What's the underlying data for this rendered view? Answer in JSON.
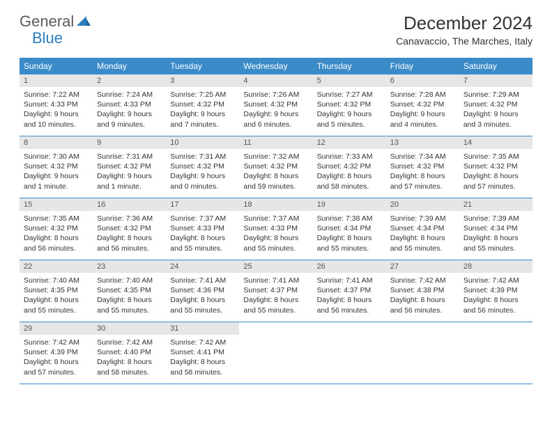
{
  "logo": {
    "text_general": "General",
    "text_blue": "Blue",
    "icon_fill": "#2a7dbf"
  },
  "header": {
    "month_title": "December 2024",
    "location": "Canavaccio, The Marches, Italy"
  },
  "colors": {
    "header_bg": "#3b8bc9",
    "header_text": "#ffffff",
    "daynum_bg": "#e6e6e6",
    "daynum_text": "#555555",
    "body_text": "#333333",
    "border": "#3b8bc9"
  },
  "day_labels": [
    "Sunday",
    "Monday",
    "Tuesday",
    "Wednesday",
    "Thursday",
    "Friday",
    "Saturday"
  ],
  "weeks": [
    [
      {
        "n": "1",
        "sr": "Sunrise: 7:22 AM",
        "ss": "Sunset: 4:33 PM",
        "dl": "Daylight: 9 hours and 10 minutes."
      },
      {
        "n": "2",
        "sr": "Sunrise: 7:24 AM",
        "ss": "Sunset: 4:33 PM",
        "dl": "Daylight: 9 hours and 9 minutes."
      },
      {
        "n": "3",
        "sr": "Sunrise: 7:25 AM",
        "ss": "Sunset: 4:32 PM",
        "dl": "Daylight: 9 hours and 7 minutes."
      },
      {
        "n": "4",
        "sr": "Sunrise: 7:26 AM",
        "ss": "Sunset: 4:32 PM",
        "dl": "Daylight: 9 hours and 6 minutes."
      },
      {
        "n": "5",
        "sr": "Sunrise: 7:27 AM",
        "ss": "Sunset: 4:32 PM",
        "dl": "Daylight: 9 hours and 5 minutes."
      },
      {
        "n": "6",
        "sr": "Sunrise: 7:28 AM",
        "ss": "Sunset: 4:32 PM",
        "dl": "Daylight: 9 hours and 4 minutes."
      },
      {
        "n": "7",
        "sr": "Sunrise: 7:29 AM",
        "ss": "Sunset: 4:32 PM",
        "dl": "Daylight: 9 hours and 3 minutes."
      }
    ],
    [
      {
        "n": "8",
        "sr": "Sunrise: 7:30 AM",
        "ss": "Sunset: 4:32 PM",
        "dl": "Daylight: 9 hours and 1 minute."
      },
      {
        "n": "9",
        "sr": "Sunrise: 7:31 AM",
        "ss": "Sunset: 4:32 PM",
        "dl": "Daylight: 9 hours and 1 minute."
      },
      {
        "n": "10",
        "sr": "Sunrise: 7:31 AM",
        "ss": "Sunset: 4:32 PM",
        "dl": "Daylight: 9 hours and 0 minutes."
      },
      {
        "n": "11",
        "sr": "Sunrise: 7:32 AM",
        "ss": "Sunset: 4:32 PM",
        "dl": "Daylight: 8 hours and 59 minutes."
      },
      {
        "n": "12",
        "sr": "Sunrise: 7:33 AM",
        "ss": "Sunset: 4:32 PM",
        "dl": "Daylight: 8 hours and 58 minutes."
      },
      {
        "n": "13",
        "sr": "Sunrise: 7:34 AM",
        "ss": "Sunset: 4:32 PM",
        "dl": "Daylight: 8 hours and 57 minutes."
      },
      {
        "n": "14",
        "sr": "Sunrise: 7:35 AM",
        "ss": "Sunset: 4:32 PM",
        "dl": "Daylight: 8 hours and 57 minutes."
      }
    ],
    [
      {
        "n": "15",
        "sr": "Sunrise: 7:35 AM",
        "ss": "Sunset: 4:32 PM",
        "dl": "Daylight: 8 hours and 56 minutes."
      },
      {
        "n": "16",
        "sr": "Sunrise: 7:36 AM",
        "ss": "Sunset: 4:32 PM",
        "dl": "Daylight: 8 hours and 56 minutes."
      },
      {
        "n": "17",
        "sr": "Sunrise: 7:37 AM",
        "ss": "Sunset: 4:33 PM",
        "dl": "Daylight: 8 hours and 55 minutes."
      },
      {
        "n": "18",
        "sr": "Sunrise: 7:37 AM",
        "ss": "Sunset: 4:33 PM",
        "dl": "Daylight: 8 hours and 55 minutes."
      },
      {
        "n": "19",
        "sr": "Sunrise: 7:38 AM",
        "ss": "Sunset: 4:34 PM",
        "dl": "Daylight: 8 hours and 55 minutes."
      },
      {
        "n": "20",
        "sr": "Sunrise: 7:39 AM",
        "ss": "Sunset: 4:34 PM",
        "dl": "Daylight: 8 hours and 55 minutes."
      },
      {
        "n": "21",
        "sr": "Sunrise: 7:39 AM",
        "ss": "Sunset: 4:34 PM",
        "dl": "Daylight: 8 hours and 55 minutes."
      }
    ],
    [
      {
        "n": "22",
        "sr": "Sunrise: 7:40 AM",
        "ss": "Sunset: 4:35 PM",
        "dl": "Daylight: 8 hours and 55 minutes."
      },
      {
        "n": "23",
        "sr": "Sunrise: 7:40 AM",
        "ss": "Sunset: 4:35 PM",
        "dl": "Daylight: 8 hours and 55 minutes."
      },
      {
        "n": "24",
        "sr": "Sunrise: 7:41 AM",
        "ss": "Sunset: 4:36 PM",
        "dl": "Daylight: 8 hours and 55 minutes."
      },
      {
        "n": "25",
        "sr": "Sunrise: 7:41 AM",
        "ss": "Sunset: 4:37 PM",
        "dl": "Daylight: 8 hours and 55 minutes."
      },
      {
        "n": "26",
        "sr": "Sunrise: 7:41 AM",
        "ss": "Sunset: 4:37 PM",
        "dl": "Daylight: 8 hours and 56 minutes."
      },
      {
        "n": "27",
        "sr": "Sunrise: 7:42 AM",
        "ss": "Sunset: 4:38 PM",
        "dl": "Daylight: 8 hours and 56 minutes."
      },
      {
        "n": "28",
        "sr": "Sunrise: 7:42 AM",
        "ss": "Sunset: 4:39 PM",
        "dl": "Daylight: 8 hours and 56 minutes."
      }
    ],
    [
      {
        "n": "29",
        "sr": "Sunrise: 7:42 AM",
        "ss": "Sunset: 4:39 PM",
        "dl": "Daylight: 8 hours and 57 minutes."
      },
      {
        "n": "30",
        "sr": "Sunrise: 7:42 AM",
        "ss": "Sunset: 4:40 PM",
        "dl": "Daylight: 8 hours and 58 minutes."
      },
      {
        "n": "31",
        "sr": "Sunrise: 7:42 AM",
        "ss": "Sunset: 4:41 PM",
        "dl": "Daylight: 8 hours and 58 minutes."
      },
      {
        "n": "",
        "sr": "",
        "ss": "",
        "dl": "",
        "empty": true
      },
      {
        "n": "",
        "sr": "",
        "ss": "",
        "dl": "",
        "empty": true
      },
      {
        "n": "",
        "sr": "",
        "ss": "",
        "dl": "",
        "empty": true
      },
      {
        "n": "",
        "sr": "",
        "ss": "",
        "dl": "",
        "empty": true
      }
    ]
  ]
}
